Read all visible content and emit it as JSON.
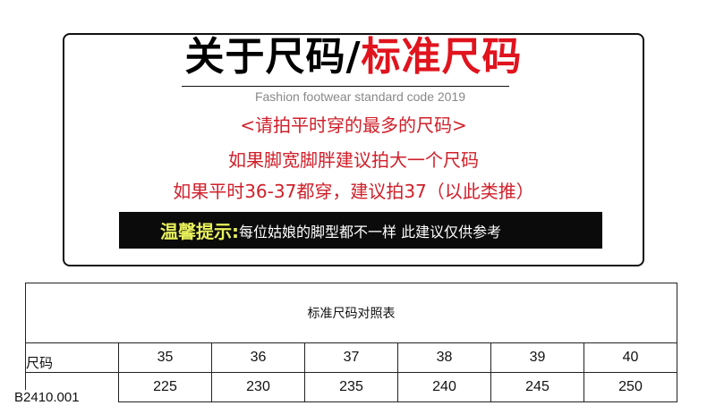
{
  "header": {
    "title_black": "关于尺码/",
    "title_red": "标准尺码",
    "subtitle": "Fashion footwear standard code 2019"
  },
  "tips": [
    "<请拍平时穿的最多的尺码>",
    "如果脚宽脚胖建议拍大一个尺码",
    "如果平时36-37都穿，建议拍37（以此类推）"
  ],
  "notice": {
    "label": "温馨提示:",
    "text": "每位姑娘的脚型都不一样 此建议仅供参考"
  },
  "table": {
    "title": "标准尺码对照表",
    "row_label": "尺码",
    "sizes": [
      "35",
      "36",
      "37",
      "38",
      "39",
      "40"
    ],
    "lengths": [
      "225",
      "230",
      "235",
      "240",
      "245",
      "250"
    ]
  },
  "product_code": "B2410.001",
  "colors": {
    "red": "#e0141e",
    "highlight": "#e8f05a"
  }
}
